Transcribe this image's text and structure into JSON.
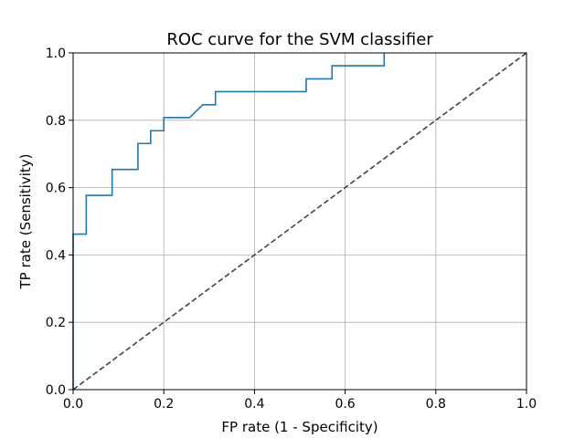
{
  "chart_data": {
    "type": "line",
    "title": "ROC curve for the SVM classifier",
    "xlabel": "FP rate (1 - Specificity)",
    "ylabel": "TP rate (Sensitivity)",
    "xlim": [
      0.0,
      1.0
    ],
    "ylim": [
      0.0,
      1.0
    ],
    "x_ticks": [
      "0.0",
      "0.2",
      "0.4",
      "0.6",
      "0.8",
      "1.0"
    ],
    "y_ticks": [
      "0.0",
      "0.2",
      "0.4",
      "0.6",
      "0.8",
      "1.0"
    ],
    "grid": true,
    "series": [
      {
        "color": "#1f77b4",
        "style": "solid",
        "points": [
          [
            0.0,
            0.0
          ],
          [
            0.0,
            0.462
          ],
          [
            0.029,
            0.462
          ],
          [
            0.029,
            0.577
          ],
          [
            0.086,
            0.577
          ],
          [
            0.086,
            0.654
          ],
          [
            0.143,
            0.654
          ],
          [
            0.143,
            0.731
          ],
          [
            0.171,
            0.731
          ],
          [
            0.171,
            0.769
          ],
          [
            0.2,
            0.769
          ],
          [
            0.2,
            0.808
          ],
          [
            0.257,
            0.808
          ],
          [
            0.286,
            0.846
          ],
          [
            0.314,
            0.846
          ],
          [
            0.314,
            0.885
          ],
          [
            0.514,
            0.885
          ],
          [
            0.514,
            0.923
          ],
          [
            0.571,
            0.923
          ],
          [
            0.571,
            0.962
          ],
          [
            0.686,
            0.962
          ],
          [
            0.686,
            1.0
          ]
        ]
      },
      {
        "color": "#444444",
        "style": "dashed",
        "points": [
          [
            0.0,
            0.0
          ],
          [
            1.0,
            1.0
          ]
        ]
      }
    ]
  }
}
